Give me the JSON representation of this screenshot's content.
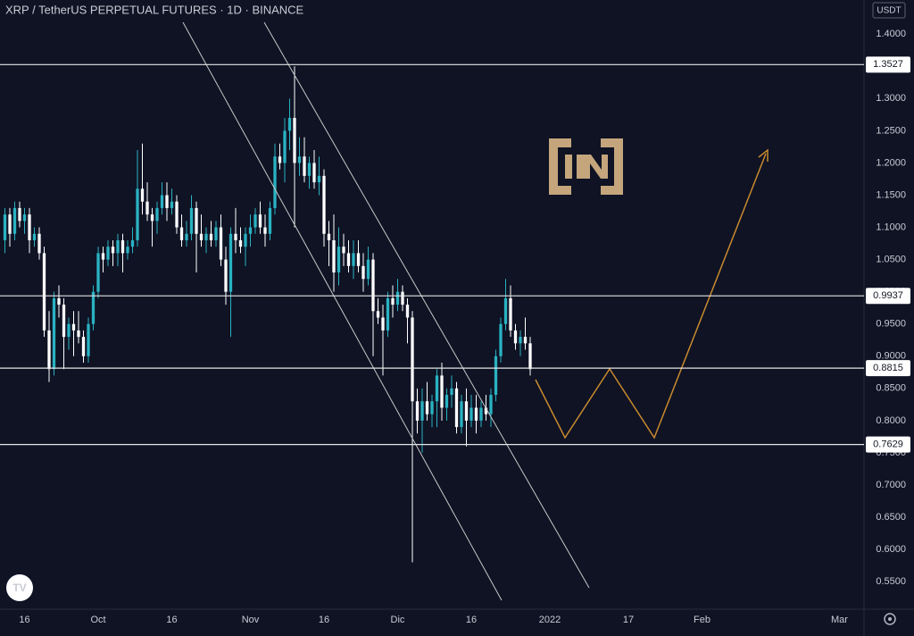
{
  "chart_data": {
    "type": "candlestick",
    "title": "XRP / TetherUS PERPETUAL FUTURES · 1D · BINANCE",
    "currency": "USDT",
    "up_color": "#2ab2c2",
    "down_color": "#ffffff",
    "xlim": [
      "09-11",
      "03-06"
    ],
    "xticks": [
      {
        "value": "09-16",
        "label": "16"
      },
      {
        "value": "10-01",
        "label": "Oct"
      },
      {
        "value": "10-16",
        "label": "16"
      },
      {
        "value": "11-01",
        "label": "Nov"
      },
      {
        "value": "11-16",
        "label": "16"
      },
      {
        "value": "12-01",
        "label": "Dic"
      },
      {
        "value": "12-16",
        "label": "16"
      },
      {
        "value": "01-01",
        "label": "2022"
      },
      {
        "value": "01-17",
        "label": "17"
      },
      {
        "value": "02-01",
        "label": "Feb"
      },
      {
        "value": "03-01",
        "label": "Mar"
      }
    ],
    "ylim": [
      0.51,
      1.453
    ],
    "yticks": [
      {
        "value": 1.4,
        "label": "1.4000"
      },
      {
        "value": 1.35,
        "label": "1.3500"
      },
      {
        "value": 1.3,
        "label": "1.3000"
      },
      {
        "value": 1.25,
        "label": "1.2500"
      },
      {
        "value": 1.2,
        "label": "1.2000"
      },
      {
        "value": 1.15,
        "label": "1.1500"
      },
      {
        "value": 1.1,
        "label": "1.1000"
      },
      {
        "value": 1.05,
        "label": "1.0500"
      },
      {
        "value": 1.0,
        "label": "1.0000"
      },
      {
        "value": 0.95,
        "label": "0.9500"
      },
      {
        "value": 0.9,
        "label": "0.9000"
      },
      {
        "value": 0.85,
        "label": "0.8500"
      },
      {
        "value": 0.8,
        "label": "0.8000"
      },
      {
        "value": 0.75,
        "label": "0.7500"
      },
      {
        "value": 0.7,
        "label": "0.7000"
      },
      {
        "value": 0.65,
        "label": "0.6500"
      },
      {
        "value": 0.6,
        "label": "0.6000"
      },
      {
        "value": 0.55,
        "label": "0.5500"
      }
    ],
    "price_lines": [
      1.3527,
      0.9937,
      0.8815,
      0.7629
    ],
    "x": [
      "09-12",
      "09-13",
      "09-14",
      "09-15",
      "09-16",
      "09-17",
      "09-18",
      "09-19",
      "09-20",
      "09-21",
      "09-22",
      "09-23",
      "09-24",
      "09-25",
      "09-26",
      "09-27",
      "09-28",
      "09-29",
      "09-30",
      "10-01",
      "10-02",
      "10-03",
      "10-04",
      "10-05",
      "10-06",
      "10-07",
      "10-08",
      "10-09",
      "10-10",
      "10-11",
      "10-12",
      "10-13",
      "10-14",
      "10-15",
      "10-16",
      "10-17",
      "10-18",
      "10-19",
      "10-20",
      "10-21",
      "10-22",
      "10-23",
      "10-24",
      "10-25",
      "10-26",
      "10-27",
      "10-28",
      "10-29",
      "10-30",
      "10-31",
      "11-01",
      "11-02",
      "11-03",
      "11-04",
      "11-05",
      "11-06",
      "11-07",
      "11-08",
      "11-09",
      "11-10",
      "11-11",
      "11-12",
      "11-13",
      "11-14",
      "11-15",
      "11-16",
      "11-17",
      "11-18",
      "11-19",
      "11-20",
      "11-21",
      "11-22",
      "11-23",
      "11-24",
      "11-25",
      "11-26",
      "11-27",
      "11-28",
      "11-29",
      "11-30",
      "12-01",
      "12-02",
      "12-03",
      "12-04",
      "12-05",
      "12-06",
      "12-07",
      "12-08",
      "12-09",
      "12-10",
      "12-11",
      "12-12",
      "12-13",
      "12-14",
      "12-15",
      "12-16",
      "12-17",
      "12-18",
      "12-19",
      "12-20",
      "12-21",
      "12-22",
      "12-23",
      "12-24",
      "12-25",
      "12-26",
      "12-27",
      "12-28"
    ],
    "ohlc": [
      [
        1.08,
        1.13,
        1.06,
        1.12
      ],
      [
        1.12,
        1.13,
        1.07,
        1.09
      ],
      [
        1.09,
        1.14,
        1.08,
        1.13
      ],
      [
        1.13,
        1.14,
        1.1,
        1.11
      ],
      [
        1.11,
        1.13,
        1.09,
        1.12
      ],
      [
        1.12,
        1.13,
        1.06,
        1.08
      ],
      [
        1.08,
        1.1,
        1.07,
        1.09
      ],
      [
        1.09,
        1.1,
        1.05,
        1.06
      ],
      [
        1.06,
        1.07,
        0.93,
        0.94
      ],
      [
        0.94,
        0.97,
        0.86,
        0.88
      ],
      [
        0.88,
        1.0,
        0.87,
        0.99
      ],
      [
        0.99,
        1.01,
        0.96,
        0.98
      ],
      [
        0.98,
        0.99,
        0.88,
        0.93
      ],
      [
        0.93,
        0.96,
        0.91,
        0.95
      ],
      [
        0.95,
        0.97,
        0.9,
        0.94
      ],
      [
        0.94,
        0.97,
        0.92,
        0.93
      ],
      [
        0.93,
        0.94,
        0.89,
        0.9
      ],
      [
        0.9,
        0.96,
        0.89,
        0.95
      ],
      [
        0.95,
        1.01,
        0.94,
        1.0
      ],
      [
        1.0,
        1.07,
        0.99,
        1.06
      ],
      [
        1.06,
        1.07,
        1.03,
        1.05
      ],
      [
        1.05,
        1.08,
        1.04,
        1.07
      ],
      [
        1.07,
        1.08,
        1.04,
        1.06
      ],
      [
        1.06,
        1.09,
        1.04,
        1.08
      ],
      [
        1.08,
        1.09,
        1.03,
        1.06
      ],
      [
        1.06,
        1.08,
        1.05,
        1.07
      ],
      [
        1.07,
        1.1,
        1.06,
        1.08
      ],
      [
        1.08,
        1.22,
        1.07,
        1.16
      ],
      [
        1.16,
        1.23,
        1.12,
        1.14
      ],
      [
        1.14,
        1.17,
        1.11,
        1.12
      ],
      [
        1.12,
        1.13,
        1.07,
        1.11
      ],
      [
        1.11,
        1.14,
        1.09,
        1.13
      ],
      [
        1.13,
        1.17,
        1.12,
        1.15
      ],
      [
        1.15,
        1.17,
        1.11,
        1.13
      ],
      [
        1.13,
        1.16,
        1.12,
        1.14
      ],
      [
        1.14,
        1.15,
        1.09,
        1.1
      ],
      [
        1.1,
        1.12,
        1.07,
        1.08
      ],
      [
        1.08,
        1.11,
        1.07,
        1.09
      ],
      [
        1.09,
        1.15,
        1.08,
        1.13
      ],
      [
        1.13,
        1.14,
        1.03,
        1.09
      ],
      [
        1.09,
        1.12,
        1.07,
        1.08
      ],
      [
        1.08,
        1.1,
        1.06,
        1.09
      ],
      [
        1.09,
        1.11,
        1.07,
        1.08
      ],
      [
        1.08,
        1.11,
        1.07,
        1.1
      ],
      [
        1.1,
        1.12,
        1.04,
        1.05
      ],
      [
        1.05,
        1.07,
        0.98,
        1.0
      ],
      [
        1.0,
        1.1,
        0.93,
        1.09
      ],
      [
        1.09,
        1.13,
        1.06,
        1.08
      ],
      [
        1.08,
        1.1,
        1.06,
        1.07
      ],
      [
        1.07,
        1.1,
        1.04,
        1.09
      ],
      [
        1.09,
        1.12,
        1.07,
        1.1
      ],
      [
        1.1,
        1.13,
        1.09,
        1.12
      ],
      [
        1.12,
        1.14,
        1.09,
        1.1
      ],
      [
        1.1,
        1.12,
        1.07,
        1.09
      ],
      [
        1.09,
        1.14,
        1.08,
        1.13
      ],
      [
        1.13,
        1.23,
        1.12,
        1.21
      ],
      [
        1.21,
        1.23,
        1.19,
        1.2
      ],
      [
        1.2,
        1.27,
        1.17,
        1.25
      ],
      [
        1.25,
        1.3,
        1.22,
        1.27
      ],
      [
        1.27,
        1.35,
        1.1,
        1.2
      ],
      [
        1.2,
        1.24,
        1.18,
        1.21
      ],
      [
        1.21,
        1.24,
        1.17,
        1.18
      ],
      [
        1.18,
        1.21,
        1.16,
        1.2
      ],
      [
        1.2,
        1.22,
        1.16,
        1.17
      ],
      [
        1.17,
        1.21,
        1.15,
        1.18
      ],
      [
        1.18,
        1.19,
        1.07,
        1.09
      ],
      [
        1.09,
        1.11,
        1.04,
        1.08
      ],
      [
        1.08,
        1.12,
        1.0,
        1.03
      ],
      [
        1.03,
        1.1,
        1.01,
        1.07
      ],
      [
        1.07,
        1.09,
        1.04,
        1.06
      ],
      [
        1.06,
        1.08,
        1.03,
        1.04
      ],
      [
        1.04,
        1.08,
        1.02,
        1.06
      ],
      [
        1.06,
        1.08,
        1.03,
        1.04
      ],
      [
        1.04,
        1.06,
        1.0,
        1.02
      ],
      [
        1.02,
        1.07,
        1.01,
        1.05
      ],
      [
        1.05,
        1.06,
        0.9,
        0.97
      ],
      [
        0.97,
        0.99,
        0.95,
        0.96
      ],
      [
        0.96,
        0.98,
        0.87,
        0.94
      ],
      [
        0.94,
        1.0,
        0.93,
        0.99
      ],
      [
        0.99,
        1.01,
        0.96,
        0.98
      ],
      [
        0.98,
        1.02,
        0.97,
        1.0
      ],
      [
        1.0,
        1.01,
        0.97,
        0.98
      ],
      [
        0.98,
        0.99,
        0.92,
        0.96
      ],
      [
        0.96,
        0.97,
        0.58,
        0.83
      ],
      [
        0.83,
        0.85,
        0.78,
        0.8
      ],
      [
        0.8,
        0.85,
        0.75,
        0.83
      ],
      [
        0.83,
        0.86,
        0.8,
        0.81
      ],
      [
        0.81,
        0.84,
        0.79,
        0.83
      ],
      [
        0.83,
        0.88,
        0.79,
        0.87
      ],
      [
        0.87,
        0.89,
        0.8,
        0.82
      ],
      [
        0.82,
        0.85,
        0.8,
        0.84
      ],
      [
        0.84,
        0.87,
        0.82,
        0.85
      ],
      [
        0.85,
        0.86,
        0.78,
        0.79
      ],
      [
        0.79,
        0.84,
        0.78,
        0.83
      ],
      [
        0.83,
        0.85,
        0.76,
        0.8
      ],
      [
        0.8,
        0.84,
        0.79,
        0.82
      ],
      [
        0.82,
        0.84,
        0.78,
        0.8
      ],
      [
        0.8,
        0.83,
        0.79,
        0.82
      ],
      [
        0.82,
        0.84,
        0.8,
        0.81
      ],
      [
        0.81,
        0.85,
        0.79,
        0.84
      ],
      [
        0.84,
        0.91,
        0.83,
        0.9
      ],
      [
        0.9,
        0.96,
        0.89,
        0.95
      ],
      [
        0.95,
        1.02,
        0.94,
        0.99
      ],
      [
        0.99,
        1.01,
        0.93,
        0.94
      ],
      [
        0.94,
        0.95,
        0.91,
        0.92
      ],
      [
        0.92,
        0.94,
        0.9,
        0.93
      ],
      [
        0.93,
        0.96,
        0.91,
        0.92
      ],
      [
        0.92,
        0.93,
        0.87,
        0.88
      ]
    ]
  }
}
